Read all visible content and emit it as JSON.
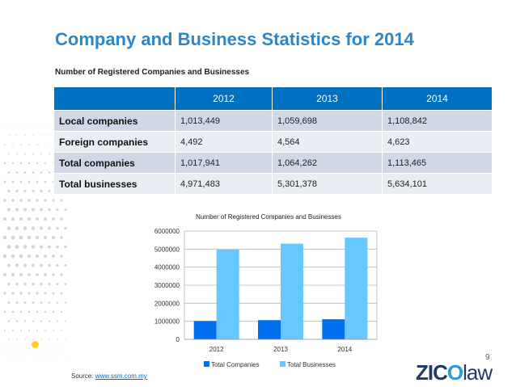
{
  "title": "Company and Business Statistics for 2014",
  "table_caption": "Number of Registered Companies and Businesses",
  "table": {
    "headers": [
      "",
      "2012",
      "2013",
      "2014"
    ],
    "rows": [
      {
        "label": "Local companies",
        "values": [
          "1,013,449",
          "1,059,698",
          "1,108,842"
        ]
      },
      {
        "label": "Foreign companies",
        "values": [
          "4,492",
          "4,564",
          "4,623"
        ]
      },
      {
        "label": "Total companies",
        "values": [
          "1,017,941",
          "1,064,262",
          "1,113,465"
        ]
      },
      {
        "label": "Total businesses",
        "values": [
          "4,971,483",
          "5,301,378",
          "5,634,101"
        ]
      }
    ]
  },
  "chart_data": {
    "type": "bar",
    "title": "Number of Registered Companies and Businesses",
    "categories": [
      "2012",
      "2013",
      "2014"
    ],
    "series": [
      {
        "name": "Total Companies",
        "values": [
          1017941,
          1064262,
          1113465
        ],
        "color": "#0070f0"
      },
      {
        "name": "Total Businesses",
        "values": [
          4971483,
          5301378,
          5634101
        ],
        "color": "#66c8ff"
      }
    ],
    "ylim": [
      0,
      6000000
    ],
    "yticks": [
      "0",
      "1000000",
      "2000000",
      "3000000",
      "4000000",
      "5000000",
      "6000000"
    ],
    "grid": true,
    "legend_position": "bottom",
    "xlabel": "",
    "ylabel": ""
  },
  "page_number": "9",
  "source": {
    "prefix": "Source: ",
    "link": "www.ssm.com.my"
  },
  "logo": {
    "part1": "ZIC",
    "part2": "O",
    "part3": "law"
  },
  "colors": {
    "title": "#2e86c8",
    "header": "#0070c0",
    "row_dark": "#d0d8e8",
    "row_light": "#e9edf4",
    "bullet": "#ffd31a"
  }
}
